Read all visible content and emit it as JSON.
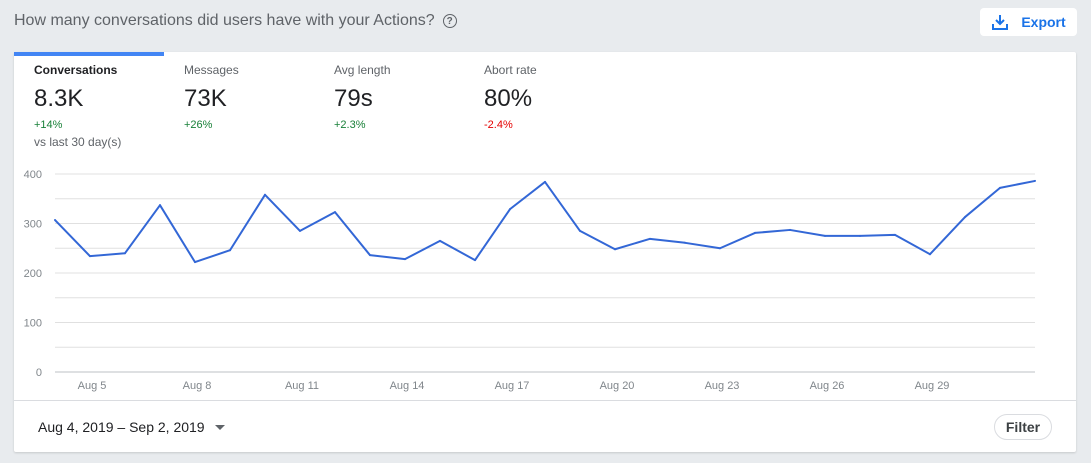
{
  "header": {
    "title": "How many conversations did users have with your Actions?",
    "help_icon": "help-circle-icon",
    "export_label": "Export",
    "export_icon": "download-icon"
  },
  "tabs": [
    {
      "label": "Conversations",
      "value": "8.3K",
      "change": "+14%",
      "trend": "up",
      "active": true,
      "comparison": "vs last 30 day(s)"
    },
    {
      "label": "Messages",
      "value": "73K",
      "change": "+26%",
      "trend": "up"
    },
    {
      "label": "Avg length",
      "value": "79s",
      "change": "+2.3%",
      "trend": "up"
    },
    {
      "label": "Abort rate",
      "value": "80%",
      "change": "-2.4%",
      "trend": "down"
    }
  ],
  "colors": {
    "accent": "#4285f4",
    "line": "#3367d6",
    "up": "#188038",
    "down": "#e50000"
  },
  "footer": {
    "date_range": "Aug 4, 2019 – Sep 2, 2019",
    "filter_label": "Filter"
  },
  "chart_data": {
    "type": "line",
    "x": [
      "Aug 4",
      "Aug 5",
      "Aug 6",
      "Aug 7",
      "Aug 8",
      "Aug 9",
      "Aug 10",
      "Aug 11",
      "Aug 12",
      "Aug 13",
      "Aug 14",
      "Aug 15",
      "Aug 16",
      "Aug 17",
      "Aug 18",
      "Aug 19",
      "Aug 20",
      "Aug 21",
      "Aug 22",
      "Aug 23",
      "Aug 24",
      "Aug 25",
      "Aug 26",
      "Aug 27",
      "Aug 28",
      "Aug 29",
      "Aug 30",
      "Aug 31",
      "Sep 1"
    ],
    "values": [
      307,
      234,
      240,
      337,
      222,
      246,
      358,
      285,
      323,
      236,
      228,
      265,
      226,
      329,
      384,
      285,
      248,
      269,
      261,
      250,
      281,
      287,
      275,
      275,
      277,
      238,
      313,
      372,
      386
    ],
    "x_ticks": [
      "Aug 5",
      "Aug 8",
      "Aug 11",
      "Aug 14",
      "Aug 17",
      "Aug 20",
      "Aug 23",
      "Aug 26",
      "Aug 29"
    ],
    "y_ticks": [
      0,
      100,
      200,
      300,
      400
    ],
    "ylim": [
      0,
      400
    ],
    "grid": true
  }
}
